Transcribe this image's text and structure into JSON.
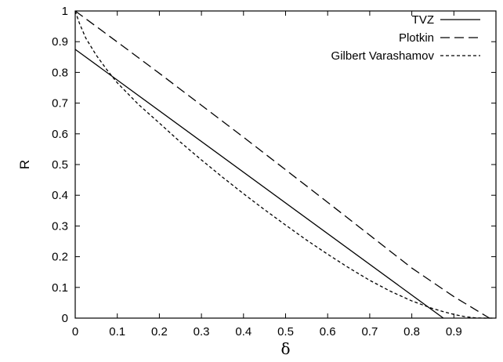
{
  "chart_data": {
    "type": "line",
    "title": "",
    "xlabel": "δ",
    "ylabel": "R",
    "xlim": [
      0,
      1
    ],
    "ylim": [
      0,
      1
    ],
    "x_ticks": [
      "0",
      "0.1",
      "0.2",
      "0.3",
      "0.4",
      "0.5",
      "0.6",
      "0.7",
      "0.8",
      "0.9"
    ],
    "y_ticks": [
      "0",
      "0.1",
      "0.2",
      "0.3",
      "0.4",
      "0.5",
      "0.6",
      "0.7",
      "0.8",
      "0.9",
      "1"
    ],
    "grid": false,
    "legend_position": "top-right",
    "series": [
      {
        "name": "TVZ",
        "dash": "solid",
        "x": [
          0,
          0.875
        ],
        "y": [
          0.875,
          0
        ]
      },
      {
        "name": "Plotkin",
        "dash": "dashed",
        "x": [
          0,
          0.1,
          0.2,
          0.3,
          0.4,
          0.5,
          0.6,
          0.7,
          0.8,
          0.9,
          0.9846
        ],
        "y": [
          1,
          0.899,
          0.797,
          0.693,
          0.589,
          0.483,
          0.377,
          0.27,
          0.163,
          0.07,
          0
        ]
      },
      {
        "name": "Gilbert Varashamov",
        "dash": "dotted",
        "x": [
          0,
          0.01,
          0.025,
          0.05,
          0.075,
          0.1,
          0.15,
          0.2,
          0.25,
          0.3,
          0.35,
          0.4,
          0.45,
          0.5,
          0.55,
          0.6,
          0.65,
          0.7,
          0.75,
          0.8,
          0.85,
          0.875,
          0.9,
          0.925,
          0.95,
          0.975,
          0.99,
          0.995
        ],
        "y": [
          1,
          0.96,
          0.912,
          0.856,
          0.809,
          0.766,
          0.696,
          0.635,
          0.573,
          0.515,
          0.459,
          0.405,
          0.353,
          0.303,
          0.254,
          0.208,
          0.164,
          0.123,
          0.087,
          0.056,
          0.031,
          0.021,
          0.012,
          0.005,
          0.001,
          0,
          0,
          0
        ]
      }
    ]
  }
}
